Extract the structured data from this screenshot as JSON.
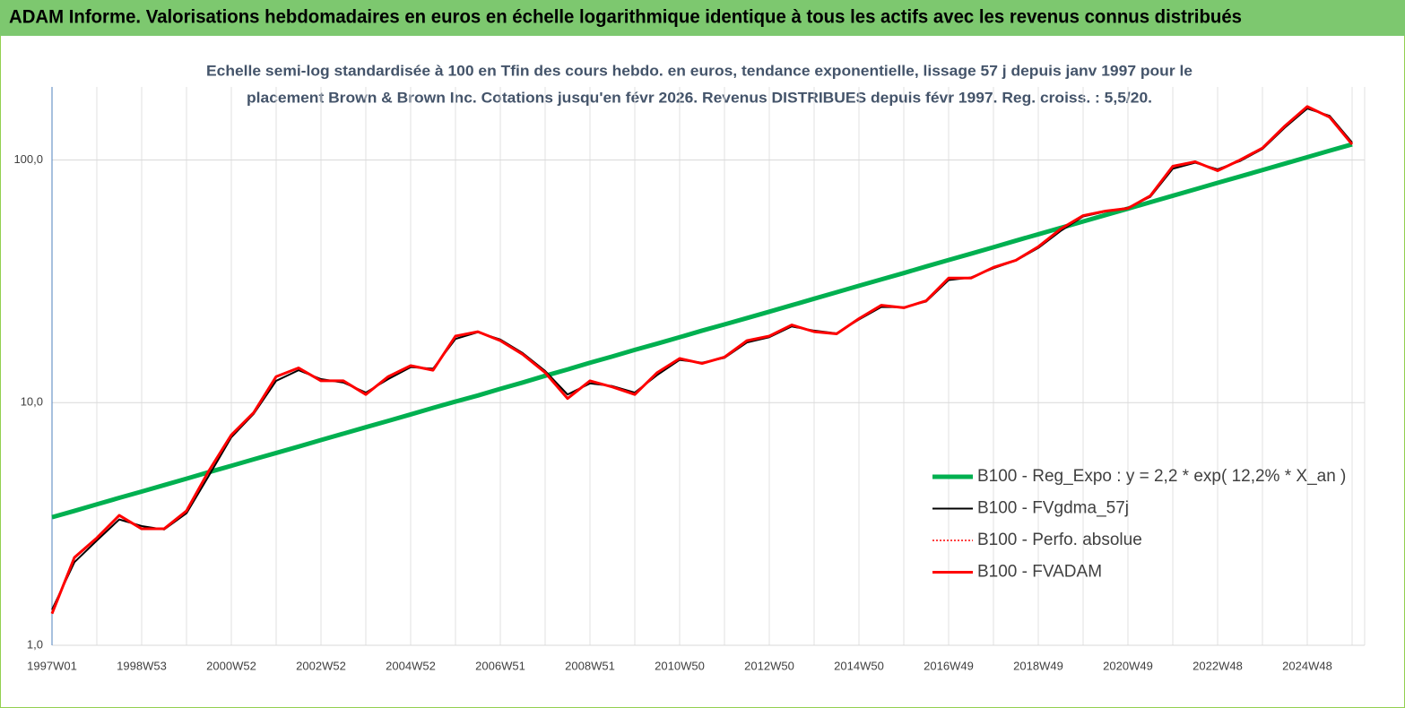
{
  "chart_data": {
    "type": "line",
    "header": "ADAM Informe. Valorisations hebdomadaires en euros en échelle logarithmique identique à tous les actifs avec les revenus connus distribués",
    "subtitle": [
      "Echelle semi-log standardisée à 100 en Tfin des cours hebdo. en euros, tendance exponentielle, lissage 57 j depuis janv 1997 pour le",
      "placement Brown & Brown Inc. Cotations jusqu'en févr 2026. Revenus DISTRIBUES depuis févr 1997. Reg. croiss. : 5,5/20."
    ],
    "log_scale": true,
    "grid": true,
    "ylim": [
      1,
      200
    ],
    "yticks": [
      {
        "value": 1,
        "label": "1,0"
      },
      {
        "value": 10,
        "label": "10,0"
      },
      {
        "value": 100,
        "label": "100,0"
      }
    ],
    "categories": [
      "1997W01",
      null,
      null,
      null,
      "1998W53",
      null,
      null,
      null,
      "2000W52",
      null,
      null,
      null,
      "2002W52",
      null,
      null,
      null,
      "2004W52",
      null,
      null,
      null,
      "2006W51",
      null,
      null,
      null,
      "2008W51",
      null,
      null,
      null,
      "2010W50",
      null,
      null,
      null,
      "2012W50",
      null,
      null,
      null,
      "2014W50",
      null,
      null,
      null,
      "2016W49",
      null,
      null,
      null,
      "2018W49",
      null,
      null,
      null,
      "2020W49",
      null,
      null,
      null,
      "2022W48",
      null,
      null,
      null,
      "2024W48",
      null,
      null
    ],
    "series": [
      {
        "name": "B100 - Reg_Expo : y = 2,2 * exp( 12,2% *  X_an )",
        "color": "#00b050",
        "width": 5,
        "dash": "none",
        "values": [
          3.37,
          3.58,
          3.81,
          4.05,
          4.3,
          4.57,
          4.86,
          5.17,
          5.49,
          5.84,
          6.2,
          6.59,
          7.01,
          7.45,
          7.92,
          8.41,
          8.94,
          9.51,
          10.1,
          10.7,
          11.4,
          12.1,
          12.9,
          13.7,
          14.6,
          15.5,
          16.5,
          17.5,
          18.6,
          19.8,
          21.0,
          22.3,
          23.7,
          25.2,
          26.8,
          28.5,
          30.3,
          32.2,
          34.2,
          36.4,
          38.7,
          41.1,
          43.7,
          46.5,
          49.4,
          52.5,
          55.8,
          59.3,
          63.0,
          67.0,
          71.2,
          75.7,
          80.5,
          85.5,
          90.9,
          96.6,
          102.7,
          109.2,
          116.0
        ]
      },
      {
        "name": "B100 - FVgdma_57j",
        "color": "#000000",
        "width": 2,
        "dash": "none",
        "values": [
          1.4,
          2.2,
          2.7,
          3.3,
          3.1,
          3.0,
          3.5,
          5.0,
          7.2,
          9.0,
          12.3,
          13.6,
          12.5,
          12.1,
          11.0,
          12.5,
          14.0,
          13.8,
          18.3,
          19.5,
          18.2,
          16.0,
          13.5,
          10.8,
          12.0,
          11.7,
          11.0,
          13.0,
          15.0,
          14.6,
          15.3,
          17.7,
          18.6,
          20.6,
          19.8,
          19.3,
          22.0,
          24.8,
          24.7,
          26.1,
          32.0,
          32.8,
          35.8,
          38.5,
          43.4,
          51.0,
          58.5,
          61.3,
          63.5,
          70.5,
          92.0,
          97.5,
          91.5,
          99.0,
          111,
          136,
          163,
          152,
          118
        ]
      },
      {
        "name": "B100 - Perfo. absolue",
        "color": "#ff0000",
        "width": 1.5,
        "dash": "2,2",
        "values": [
          1.35,
          2.3,
          2.77,
          3.43,
          3.02,
          3.02,
          3.58,
          5.24,
          7.36,
          9.1,
          12.8,
          13.9,
          12.3,
          12.3,
          10.8,
          12.8,
          14.2,
          13.6,
          18.8,
          19.6,
          18.0,
          15.8,
          13.3,
          10.4,
          12.3,
          11.6,
          10.8,
          13.3,
          15.2,
          14.5,
          15.4,
          18.0,
          18.8,
          20.9,
          19.6,
          19.2,
          22.2,
          25.2,
          24.6,
          26.3,
          32.6,
          32.6,
          36.1,
          38.6,
          43.9,
          52.0,
          59.0,
          61.6,
          63.2,
          71.2,
          94.2,
          98.3,
          90.3,
          100,
          112,
          138,
          166,
          150,
          116
        ]
      },
      {
        "name": "B100 - FVADAM",
        "color": "#ff0000",
        "width": 3,
        "dash": "none",
        "values": [
          1.35,
          2.3,
          2.77,
          3.43,
          3.02,
          3.02,
          3.58,
          5.24,
          7.36,
          9.1,
          12.8,
          13.9,
          12.3,
          12.3,
          10.8,
          12.8,
          14.2,
          13.6,
          18.8,
          19.6,
          18.0,
          15.8,
          13.3,
          10.4,
          12.3,
          11.6,
          10.8,
          13.3,
          15.2,
          14.5,
          15.4,
          18.0,
          18.8,
          20.9,
          19.6,
          19.2,
          22.2,
          25.2,
          24.6,
          26.3,
          32.6,
          32.6,
          36.1,
          38.6,
          43.9,
          52.0,
          59.0,
          61.6,
          63.2,
          71.2,
          94.2,
          98.3,
          90.3,
          100,
          112,
          138,
          166,
          150,
          116
        ]
      }
    ]
  }
}
